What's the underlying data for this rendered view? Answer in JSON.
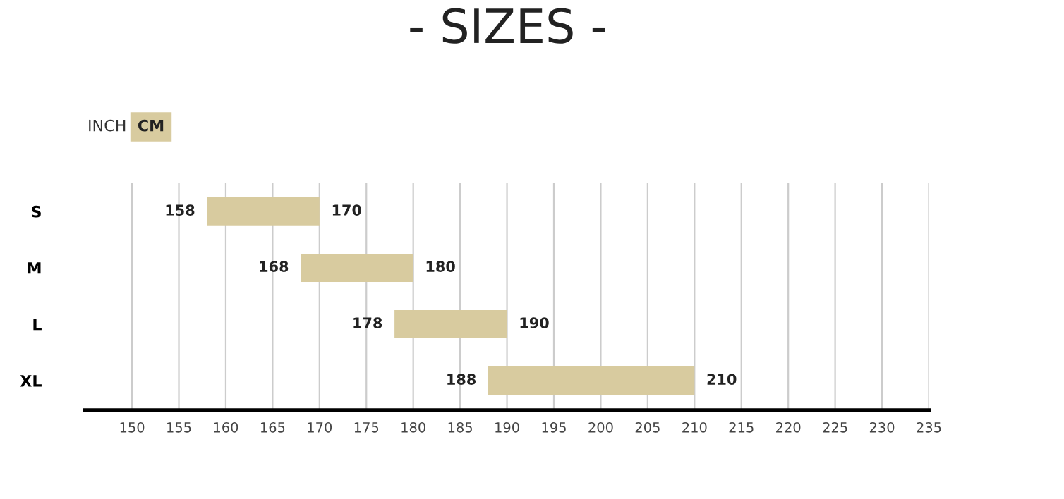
{
  "chart_data": {
    "type": "bar",
    "orientation": "horizontal",
    "title": "- SIZES -",
    "categories": [
      "S",
      "M",
      "L",
      "XL"
    ],
    "base": [
      158,
      168,
      178,
      188
    ],
    "values": [
      12,
      12,
      12,
      22
    ],
    "color": "#d8cb9f",
    "xlim": [
      145,
      235
    ],
    "xticks": [
      150,
      155,
      160,
      165,
      170,
      175,
      180,
      185,
      190,
      195,
      200,
      205,
      210,
      215,
      220,
      225,
      230,
      235
    ],
    "grid": "x",
    "annotations": [
      "INCH",
      "CM",
      {
        "text": "158",
        "x": 158,
        "y": "S"
      },
      {
        "text": "170",
        "x": 170,
        "y": "S"
      },
      {
        "text": "168",
        "x": 168,
        "y": "M"
      },
      {
        "text": "180",
        "x": 180,
        "y": "M"
      },
      {
        "text": "178",
        "x": 178,
        "y": "L"
      },
      {
        "text": "190",
        "x": 190,
        "y": "L"
      },
      {
        "text": "188",
        "x": 188,
        "y": "XL"
      },
      {
        "text": "210",
        "x": 210,
        "y": "XL"
      }
    ]
  }
}
